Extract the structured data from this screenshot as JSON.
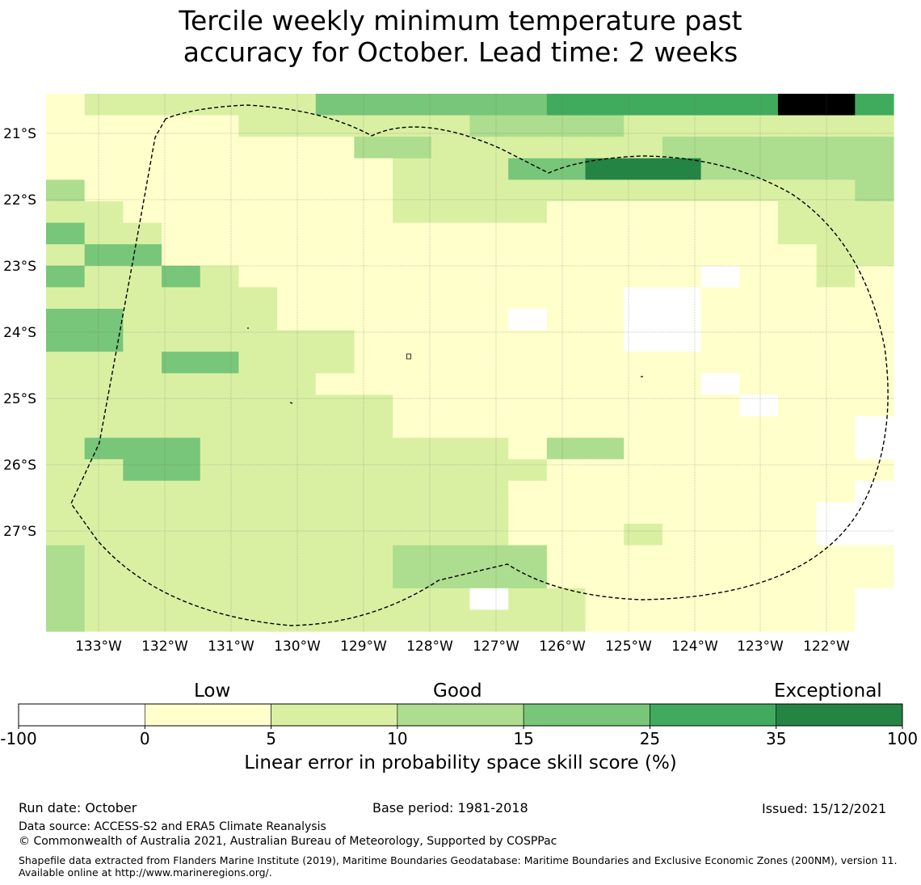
{
  "title_line1": "Tercile weekly minimum temperature past",
  "title_line2": "accuracy for October. Lead time: 2 weeks",
  "map": {
    "lat_labels": [
      "21°S",
      "22°S",
      "23°S",
      "24°S",
      "25°S",
      "26°S",
      "27°S"
    ],
    "lon_labels": [
      "133°W",
      "132°W",
      "131°W",
      "130°W",
      "129°W",
      "128°W",
      "127°W",
      "126°W",
      "125°W",
      "124°W",
      "123°W",
      "122°W"
    ],
    "grid_rows": [
      "1222222444444555555775",
      "1111122222233332222222",
      "1111111133222222333333",
      "1111111112224466633333",
      "3111111112222222222223",
      "2211111112222111111222",
      "4221111111111111111222",
      "2441111111111111111122",
      "4224211111111111101121",
      "2222221111111110011111",
      "4422221111110110011111",
      "4422222211111110011111",
      "2224422211111111111111",
      "2222222111111111101111",
      "2222222221111111110111",
      "2222222221111111111110",
      "2444222222221331111110",
      "2244222222222111111111",
      "2222222222221111111110",
      "2222222222221111111100",
      "2222222222221112111100",
      "3222222223333111111111",
      "3222222223333111111111",
      "3222222222202211111110",
      "3222222222222211111110"
    ],
    "legend_color_levels": [
      "#ffffff",
      "#ffffcc",
      "#d9f0a3",
      "#addd8e",
      "#78c679",
      "#41ab5d",
      "#238443"
    ]
  },
  "colorbar": {
    "ticks": [
      "-100",
      "0",
      "5",
      "10",
      "15",
      "25",
      "35",
      "100"
    ],
    "colors": [
      "#ffffff",
      "#ffffcc",
      "#d9f0a3",
      "#addd8e",
      "#78c679",
      "#41ab5d",
      "#238443"
    ],
    "label_low": "Low",
    "label_good": "Good",
    "label_exceptional": "Exceptional",
    "title": "Linear error in probability space skill score (%)"
  },
  "footer": {
    "run_date": "Run date: October",
    "base_period": "Base period: 1981-2018",
    "issued": "Issued: 15/12/2021",
    "data_source": "Data source: ACCESS-S2 and ERA5 Climate Reanalysis",
    "copyright": "© Commonwealth of Australia 2021, Australian Bureau of Meteorology, Supported by COSPPac",
    "shapefile": "Shapefile data extracted from Flanders Marine Institute (2019), Maritime Boundaries Geodatabase: Maritime Boundaries and Exclusive Economic Zones (200NM), version 11. Available online at http://www.marineregions.org/."
  }
}
